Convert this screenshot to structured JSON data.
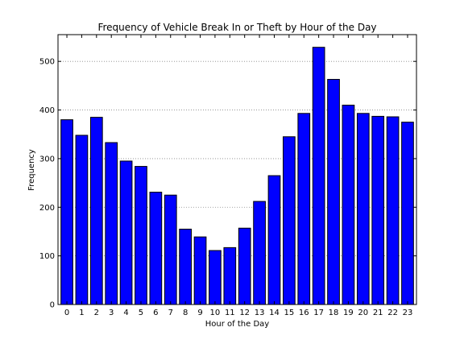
{
  "chart_data": {
    "type": "bar",
    "title": "Frequency of Vehicle Break In or Theft by Hour of the Day",
    "xlabel": "Hour of the Day",
    "ylabel": "Frequency",
    "categories": [
      "0",
      "1",
      "2",
      "3",
      "4",
      "5",
      "6",
      "7",
      "8",
      "9",
      "10",
      "11",
      "12",
      "13",
      "14",
      "15",
      "16",
      "17",
      "18",
      "19",
      "20",
      "21",
      "22",
      "23"
    ],
    "values": [
      380,
      348,
      385,
      333,
      295,
      284,
      231,
      225,
      155,
      139,
      111,
      117,
      157,
      212,
      265,
      345,
      393,
      529,
      463,
      410,
      393,
      387,
      386,
      375
    ],
    "ylim": [
      0,
      555
    ],
    "yticks": [
      0,
      100,
      200,
      300,
      400,
      500
    ],
    "grid": "horizontal-dotted",
    "bar_color": "#0000ff",
    "edge_color": "#000000"
  }
}
